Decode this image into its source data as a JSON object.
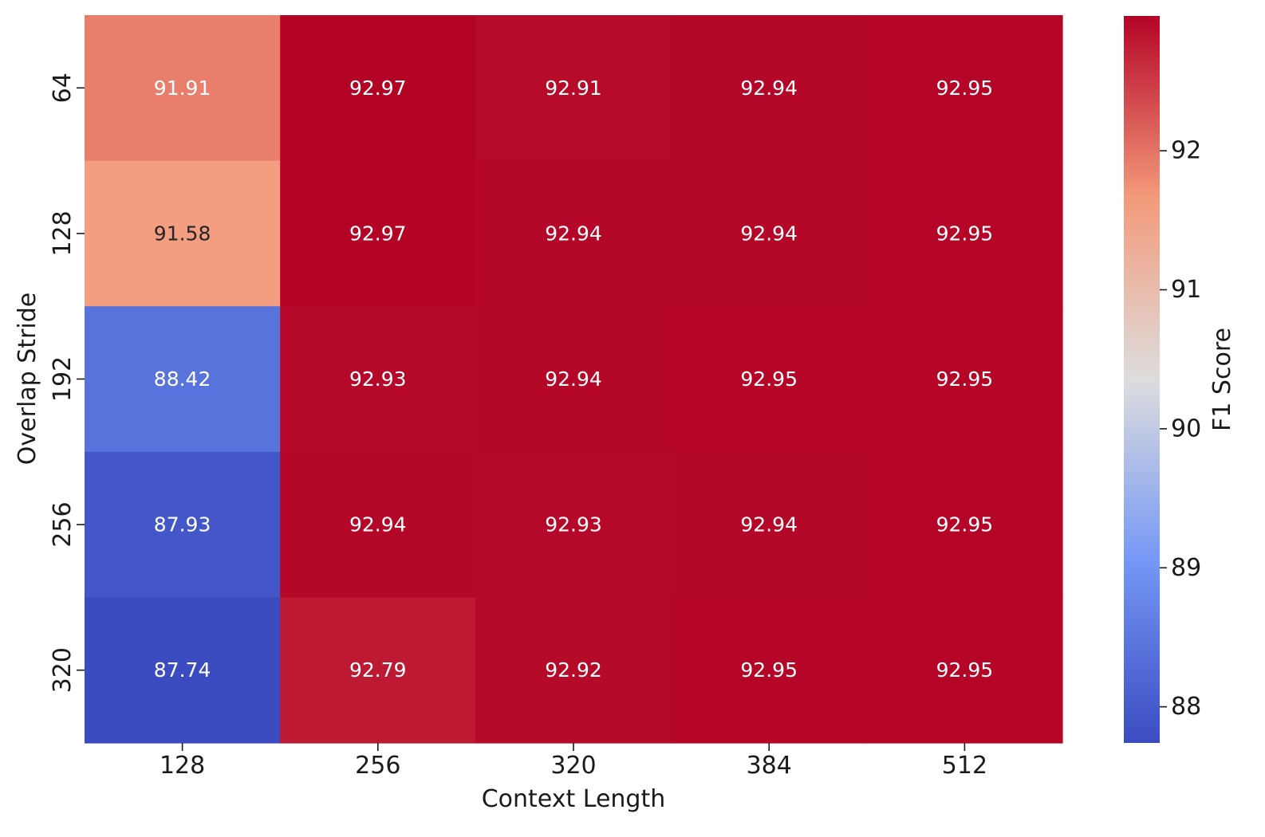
{
  "chart_data": {
    "type": "heatmap",
    "title": "",
    "xlabel": "Context Length",
    "ylabel": "Overlap Stride",
    "x_categories": [
      "128",
      "256",
      "320",
      "384",
      "512"
    ],
    "y_categories": [
      "64",
      "128",
      "192",
      "256",
      "320"
    ],
    "values": [
      [
        91.91,
        92.97,
        92.91,
        92.94,
        92.95
      ],
      [
        91.58,
        92.97,
        92.94,
        92.94,
        92.95
      ],
      [
        88.42,
        92.93,
        92.94,
        92.95,
        92.95
      ],
      [
        87.93,
        92.94,
        92.93,
        92.94,
        92.95
      ],
      [
        87.74,
        92.79,
        92.92,
        92.95,
        92.95
      ]
    ],
    "colormap": "coolwarm",
    "colorbar": {
      "label": "F1 Score",
      "ticks": [
        "88",
        "89",
        "90",
        "91",
        "92"
      ],
      "range": [
        87.74,
        92.97
      ]
    }
  }
}
